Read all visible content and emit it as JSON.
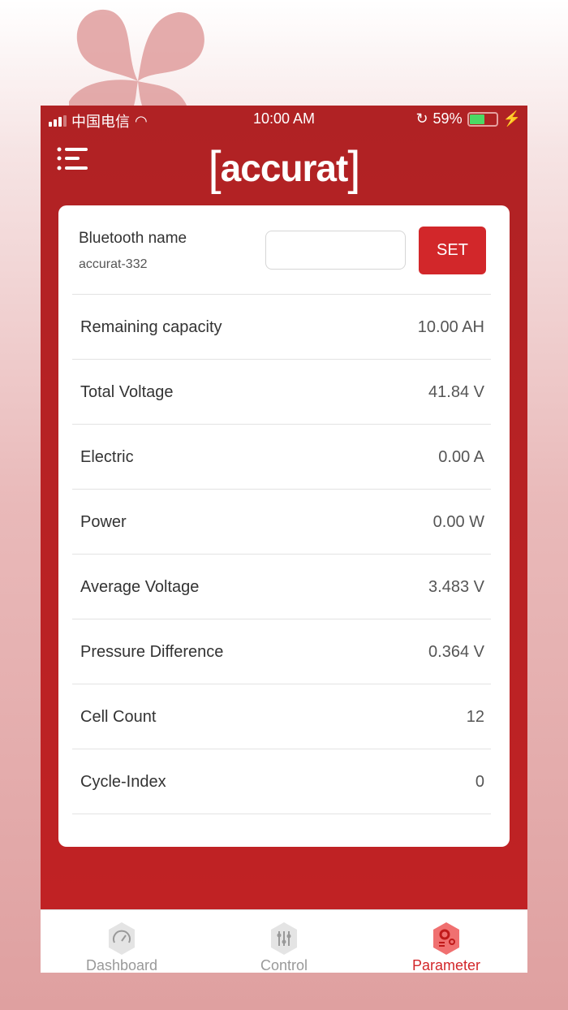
{
  "status_bar": {
    "carrier": "中国电信",
    "time": "10:00 AM",
    "battery": "59%",
    "battery_level": 0.59
  },
  "header": {
    "logo": "accurat",
    "menu_icon": "menu-icon"
  },
  "bluetooth": {
    "label": "Bluetooth name",
    "name": "accurat-332",
    "input_value": "",
    "set_label": "SET"
  },
  "params": [
    {
      "label": "Remaining capacity",
      "value": "10.00 AH"
    },
    {
      "label": "Total Voltage",
      "value": "41.84 V"
    },
    {
      "label": "Electric",
      "value": "0.00 A"
    },
    {
      "label": "Power",
      "value": "0.00 W"
    },
    {
      "label": "Average Voltage",
      "value": "3.483 V"
    },
    {
      "label": "Pressure Difference",
      "value": "0.364 V"
    },
    {
      "label": "Cell Count",
      "value": "12"
    },
    {
      "label": "Cycle-Index",
      "value": "0"
    }
  ],
  "tabs": [
    {
      "label": "Dashboard",
      "icon": "gauge-icon"
    },
    {
      "label": "Control",
      "icon": "sliders-icon"
    },
    {
      "label": "Parameter",
      "icon": "gears-icon",
      "active": true
    }
  ],
  "colors": {
    "brand": "#b52224",
    "button": "#d2272a",
    "active_tab": "#d2272a",
    "inactive_tab": "#999999"
  }
}
